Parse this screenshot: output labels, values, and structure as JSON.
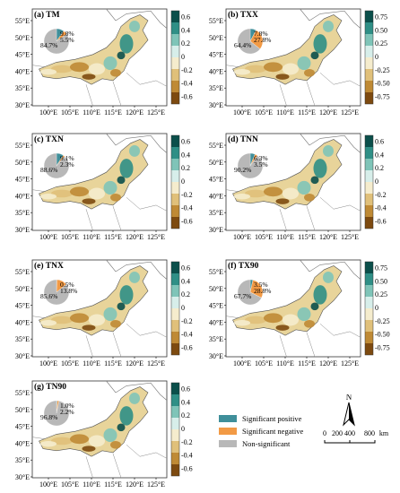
{
  "colors": {
    "sig_pos": "#3f8f9a",
    "sig_neg": "#f29a45",
    "non_sig": "#b8b8b8",
    "map_line": "#555555"
  },
  "lat_ticks": [
    "55°E",
    "50°E",
    "45°E",
    "40°E",
    "35°E",
    "30°E"
  ],
  "lon_ticks": [
    "100°E",
    "105°E",
    "110°E",
    "115°E",
    "120°E",
    "125°E"
  ],
  "panels": [
    {
      "label": "(a) TM",
      "pie": {
        "non": "84.7%",
        "pos": "9.8%",
        "neg": "5.5%",
        "pos_v": 9.8,
        "neg_v": 5.5,
        "non_v": 84.7
      },
      "colorbar": {
        "ticks": [
          "0.6",
          "0.4",
          "0.2",
          "0",
          "-0.2",
          "-0.4",
          "-0.6"
        ],
        "min": -0.6,
        "max": 0.6
      }
    },
    {
      "label": "(b) TXX",
      "pie": {
        "non": "64.4%",
        "pos": "7.8%",
        "neg": "27.8%",
        "pos_v": 7.8,
        "neg_v": 27.8,
        "non_v": 64.4
      },
      "colorbar": {
        "ticks": [
          "0.75",
          "0.50",
          "0.25",
          "0",
          "-0.25",
          "-0.50",
          "-0.75"
        ],
        "min": -0.75,
        "max": 0.75
      }
    },
    {
      "label": "(c) TXN",
      "pie": {
        "non": "88.6%",
        "pos": "9.1%",
        "neg": "2.3%",
        "pos_v": 9.1,
        "neg_v": 2.3,
        "non_v": 88.6
      },
      "colorbar": {
        "ticks": [
          "0.6",
          "0.4",
          "0.2",
          "0",
          "-0.2",
          "-0.4",
          "-0.6"
        ],
        "min": -0.6,
        "max": 0.6
      }
    },
    {
      "label": "(d) TNN",
      "pie": {
        "non": "90.2%",
        "pos": "6.3%",
        "neg": "3.5%",
        "pos_v": 6.3,
        "neg_v": 3.5,
        "non_v": 90.2
      },
      "colorbar": {
        "ticks": [
          "0.6",
          "0.4",
          "0.2",
          "0",
          "-0.2",
          "-0.4",
          "-0.6"
        ],
        "min": -0.6,
        "max": 0.6
      }
    },
    {
      "label": "(e) TNX",
      "pie": {
        "non": "85.6%",
        "pos": "0.5%",
        "neg": "13.8%",
        "pos_v": 0.5,
        "neg_v": 13.8,
        "non_v": 85.6
      },
      "colorbar": {
        "ticks": [
          "0.6",
          "0.4",
          "0.2",
          "0",
          "-0.2",
          "-0.4",
          "-0.6"
        ],
        "min": -0.6,
        "max": 0.6
      }
    },
    {
      "label": "(f) TX90",
      "pie": {
        "non": "67.7%",
        "pos": "3.5%",
        "neg": "28.8%",
        "pos_v": 3.5,
        "neg_v": 28.8,
        "non_v": 67.7
      },
      "colorbar": {
        "ticks": [
          "0.75",
          "0.50",
          "0.25",
          "0",
          "-0.25",
          "-0.50",
          "-0.75"
        ],
        "min": -0.75,
        "max": 0.75
      }
    },
    {
      "label": "(g) TN90",
      "pie": {
        "non": "96.8%",
        "pos": "1.0%",
        "neg": "2.2%",
        "pos_v": 1.0,
        "neg_v": 2.2,
        "non_v": 96.8
      },
      "colorbar": {
        "ticks": [
          "0.6",
          "0.4",
          "0.2",
          "0",
          "-0.2",
          "-0.4",
          "-0.6"
        ],
        "min": -0.6,
        "max": 0.6
      }
    }
  ],
  "legend": {
    "items": [
      {
        "label": "Significant positive",
        "color": "#3f8f9a"
      },
      {
        "label": "Significant negative",
        "color": "#f29a45"
      },
      {
        "label": "Non-significant",
        "color": "#b8b8b8"
      }
    ]
  },
  "north_arrow": "N",
  "scale_bar": {
    "labels": [
      "0",
      "200",
      "400",
      "800"
    ],
    "unit": "km"
  }
}
